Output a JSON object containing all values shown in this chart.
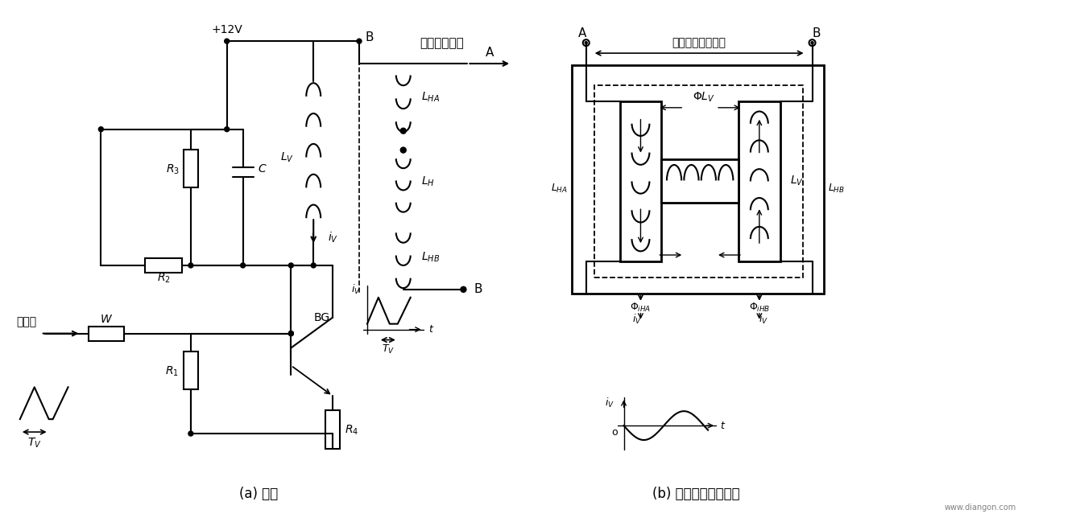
{
  "title": "",
  "background": "#ffffff",
  "label_a": "(a) 电路",
  "label_b": "(b) 磁饱和变压器特点",
  "text_plus12v": "+12V",
  "text_jiexing": "接行偏转线圈",
  "text_yuhang": "与行偏转线圈串联",
  "text_changshuchuu": "场输出",
  "text_W": "W",
  "text_BG": "BG",
  "text_R1": "$R_1$",
  "text_R2": "$R_2$",
  "text_R3": "$R_3$",
  "text_R4": "$R_4$",
  "text_C": "$C$",
  "text_LV": "$L_V$",
  "text_LHA": "$L_{HA}$",
  "text_LH": "$L_H$",
  "text_LHB": "$L_{HB}$",
  "text_iV": "$i_V$",
  "text_TV": "$T_V$",
  "text_B": "B",
  "text_A": "A",
  "text_o": "o",
  "text_t": "t",
  "text_PhiLV": "$\\Phi L_V$",
  "text_PhiHA": "$\\Phi_{iHA}$",
  "text_PhiHB": "$\\Phi_{iHB}$",
  "watermark": "www.diangon.com"
}
